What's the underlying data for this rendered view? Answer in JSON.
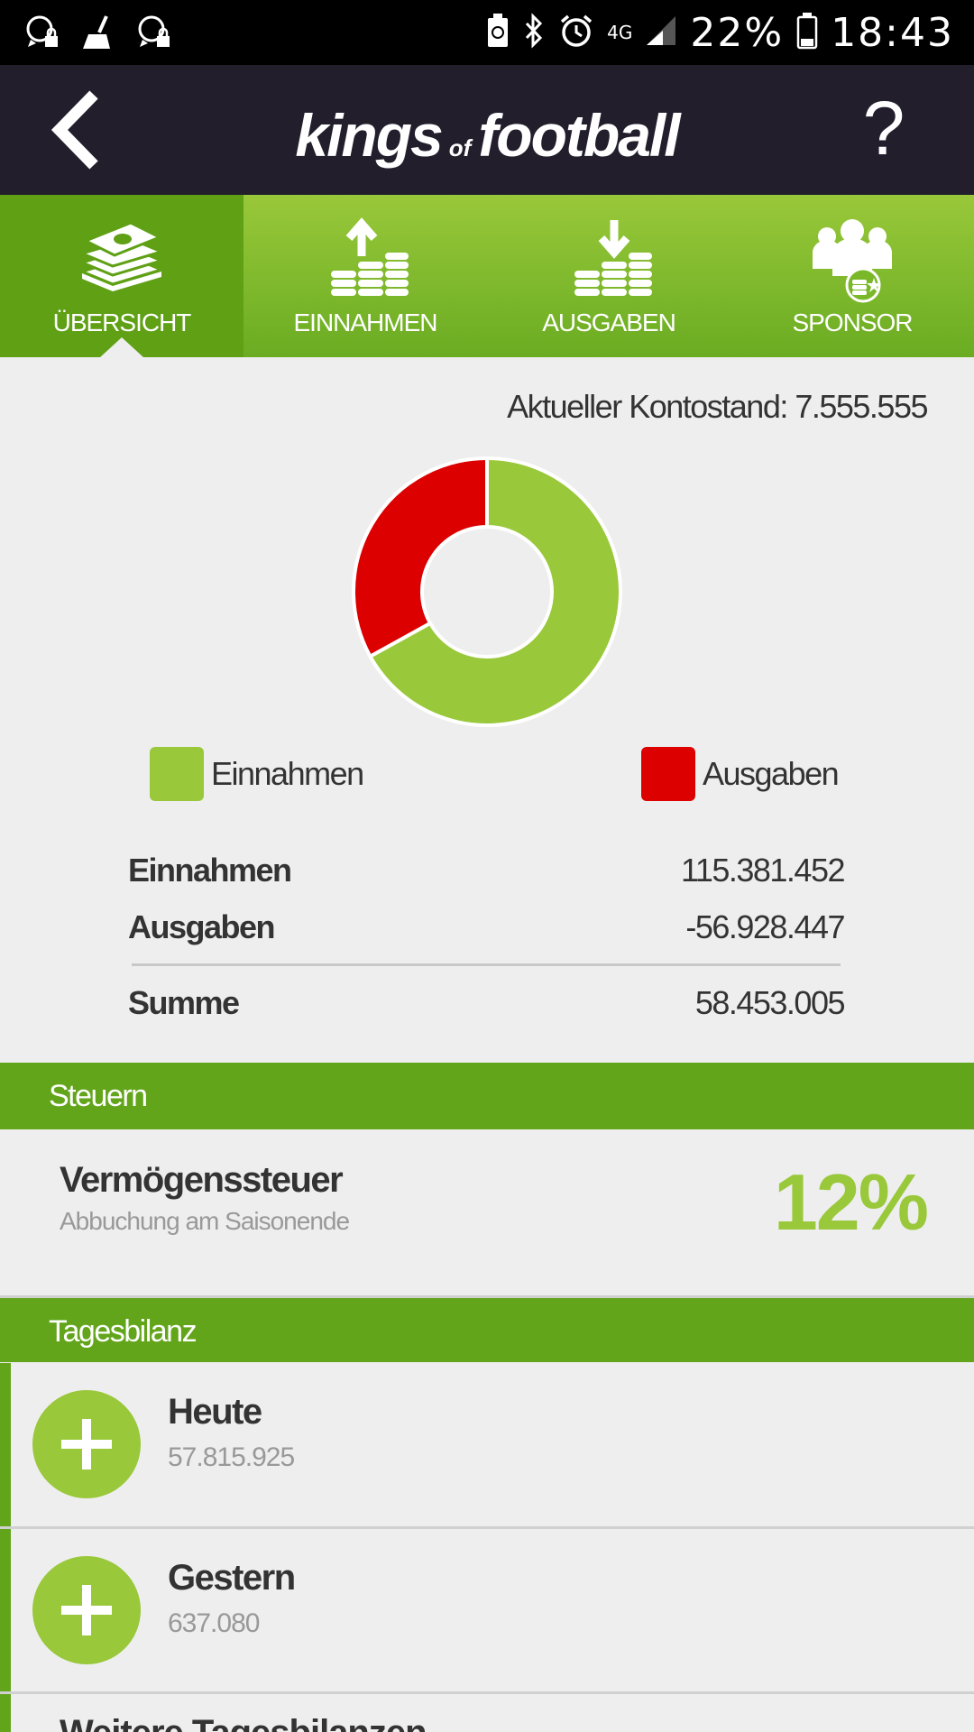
{
  "status_bar": {
    "left_icons": [
      "whatsapp-lock-icon",
      "broom-icon",
      "whatsapp-lock-icon"
    ],
    "network": "4G",
    "battery_percent": "22%",
    "time": "18:43"
  },
  "header": {
    "logo_part1": "kings",
    "logo_part2": "of",
    "logo_part3": "football",
    "help_label": "?"
  },
  "tabs": [
    {
      "label": "ÜBERSICHT",
      "icon": "money-stack-icon",
      "active": true
    },
    {
      "label": "EINNAHMEN",
      "icon": "coins-arrow-up-icon",
      "active": false
    },
    {
      "label": "AUSGABEN",
      "icon": "coins-arrow-down-icon",
      "active": false
    },
    {
      "label": "SPONSOR",
      "icon": "sponsor-group-icon",
      "active": false
    }
  ],
  "balance_text": "Aktueller Kontostand: 7.555.555",
  "chart_data": {
    "type": "pie",
    "variant": "donut",
    "categories": [
      "Einnahmen",
      "Ausgaben"
    ],
    "values": [
      115381452,
      56928447
    ],
    "colors": [
      "#99c83a",
      "#dc0000"
    ],
    "legend_position": "bottom"
  },
  "legend": {
    "income_label": "Einnahmen",
    "expense_label": "Ausgaben",
    "income_color": "#99c83a",
    "expense_color": "#dc0000"
  },
  "summary": {
    "income_label": "Einnahmen",
    "income_value": "115.381.452",
    "expense_label": "Ausgaben",
    "expense_value": "-56.928.447",
    "sum_label": "Summe",
    "sum_value": "58.453.005"
  },
  "taxes": {
    "section_title": "Steuern",
    "title": "Vermögenssteuer",
    "subtitle": "Abbuchung am Saisonende",
    "value": "12%"
  },
  "daily": {
    "section_title": "Tagesbilanz",
    "items": [
      {
        "title": "Heute",
        "value": "57.815.925",
        "icon": "plus-icon"
      },
      {
        "title": "Gestern",
        "value": "637.080",
        "icon": "plus-icon"
      }
    ],
    "next_title_partial": "Weitere Tagesbilanzen"
  },
  "colors": {
    "accent_green": "#99c83a",
    "dark_green": "#62a51b",
    "header_bg": "#221e2c",
    "expense_red": "#dc0000"
  }
}
